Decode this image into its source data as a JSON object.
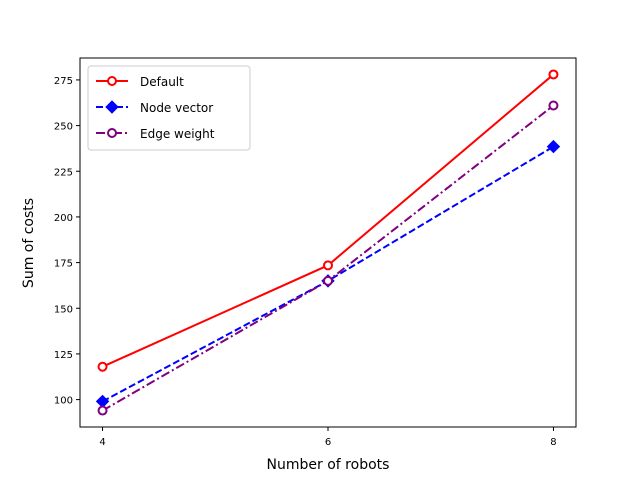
{
  "chart_data": {
    "type": "line",
    "title": "",
    "xlabel": "Number of robots",
    "ylabel": "Sum of costs",
    "x": [
      4,
      6,
      8
    ],
    "xticks": [
      4,
      6,
      8
    ],
    "xlim": [
      3.8,
      8.2
    ],
    "ylim": [
      85,
      287
    ],
    "yticks": [
      100,
      125,
      150,
      175,
      200,
      225,
      250,
      275
    ],
    "grid": false,
    "legend_position": "top-left",
    "series": [
      {
        "name": "Default",
        "values": [
          118,
          173.5,
          278
        ],
        "color": "#ff0000",
        "line_style": "solid",
        "marker": "circle-open"
      },
      {
        "name": "Node vector",
        "values": [
          99,
          165,
          238.5
        ],
        "color": "#0000ff",
        "line_style": "dashed",
        "marker": "diamond-filled"
      },
      {
        "name": "Edge weight",
        "values": [
          94,
          165,
          261
        ],
        "color": "#800080",
        "line_style": "dash-dot",
        "marker": "circle-open"
      }
    ]
  }
}
